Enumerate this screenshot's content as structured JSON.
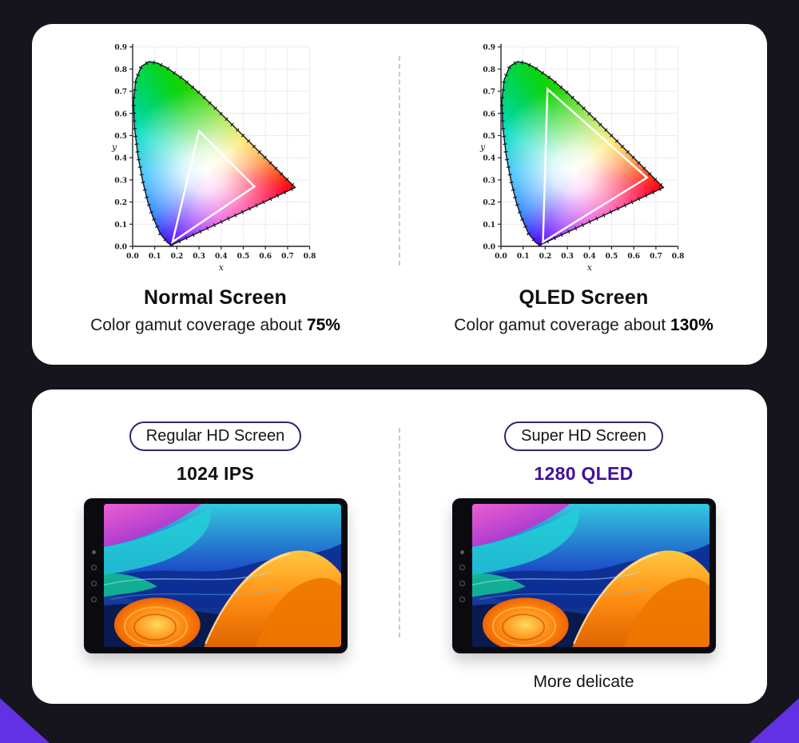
{
  "page": {
    "background": "#16141c",
    "card_color": "#ffffff",
    "corner_accent": "#6331e4"
  },
  "chart_data": [
    {
      "type": "area",
      "title": "Normal Screen",
      "subtitle_prefix": "Color gamut coverage about ",
      "coverage": "75%",
      "xlabel": "x",
      "ylabel": "y",
      "xlim": [
        0,
        0.8
      ],
      "ylim": [
        0,
        0.9
      ],
      "xticks": [
        "0.0",
        "0.1",
        "0.2",
        "0.3",
        "0.4",
        "0.5",
        "0.6",
        "0.7",
        "0.8"
      ],
      "yticks": [
        "0.0",
        "0.1",
        "0.2",
        "0.3",
        "0.4",
        "0.5",
        "0.6",
        "0.7",
        "0.8",
        "0.9"
      ],
      "grid": true,
      "legend": "none",
      "gamut_triangle": [
        [
          0.3,
          0.52
        ],
        [
          0.18,
          0.02
        ],
        [
          0.55,
          0.27
        ]
      ]
    },
    {
      "type": "area",
      "title": "QLED Screen",
      "subtitle_prefix": "Color gamut coverage about ",
      "coverage": "130%",
      "xlabel": "x",
      "ylabel": "y",
      "xlim": [
        0,
        0.8
      ],
      "ylim": [
        0,
        0.9
      ],
      "xticks": [
        "0.0",
        "0.1",
        "0.2",
        "0.3",
        "0.4",
        "0.5",
        "0.6",
        "0.7",
        "0.8"
      ],
      "yticks": [
        "0.0",
        "0.1",
        "0.2",
        "0.3",
        "0.4",
        "0.5",
        "0.6",
        "0.7",
        "0.8",
        "0.9"
      ],
      "grid": true,
      "legend": "none",
      "gamut_triangle": [
        [
          0.21,
          0.71
        ],
        [
          0.19,
          0.02
        ],
        [
          0.66,
          0.31
        ]
      ]
    }
  ],
  "spectral_locus": [
    [
      0.1741,
      0.005
    ],
    [
      0.1566,
      0.0177
    ],
    [
      0.1241,
      0.0578
    ],
    [
      0.0913,
      0.1327
    ],
    [
      0.0687,
      0.2007
    ],
    [
      0.0454,
      0.295
    ],
    [
      0.0235,
      0.4127
    ],
    [
      0.0082,
      0.5384
    ],
    [
      0.0039,
      0.6548
    ],
    [
      0.0139,
      0.7502
    ],
    [
      0.0389,
      0.812
    ],
    [
      0.0743,
      0.8338
    ],
    [
      0.1142,
      0.8262
    ],
    [
      0.1547,
      0.8059
    ],
    [
      0.2296,
      0.7543
    ],
    [
      0.3016,
      0.6923
    ],
    [
      0.3731,
      0.6245
    ],
    [
      0.4441,
      0.5547
    ],
    [
      0.5125,
      0.4866
    ],
    [
      0.5752,
      0.4242
    ],
    [
      0.627,
      0.3725
    ],
    [
      0.6658,
      0.334
    ],
    [
      0.6915,
      0.3083
    ],
    [
      0.7079,
      0.292
    ],
    [
      0.726,
      0.274
    ],
    [
      0.7347,
      0.2653
    ]
  ],
  "screens": {
    "left": {
      "badge": "Regular HD Screen",
      "resolution": "1024 IPS",
      "resolution_color": "#101010"
    },
    "right": {
      "badge": "Super HD Screen",
      "resolution": "1280 QLED",
      "resolution_color": "#43119b",
      "note": "More delicate"
    }
  }
}
